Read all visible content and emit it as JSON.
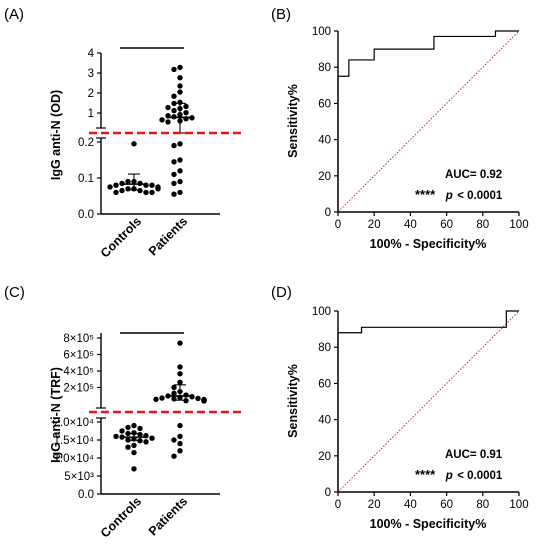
{
  "chart_data": [
    {
      "panel": "(A)",
      "type": "scatter",
      "ylabel": "IgG anti-N (OD)",
      "categories": [
        "Controls",
        "Patients"
      ],
      "y_axis_segments": [
        {
          "range": [
            0.0,
            0.2
          ],
          "ticks": [
            "0.0",
            "0.1",
            "0.2"
          ]
        },
        {
          "range": [
            0.5,
            4.0
          ],
          "ticks": [
            "1",
            "2",
            "3",
            "4"
          ]
        }
      ],
      "cutoff_line": true,
      "significance_bar": true,
      "summary": {
        "Controls": {
          "mean": 0.083,
          "err": [
            0.067,
            0.111
          ]
        },
        "Patients": {
          "mean": 0.87,
          "err": [
            0.22,
            1.55
          ]
        }
      },
      "series": [
        {
          "category": "Controls",
          "values": [
            0.195,
            0.09,
            0.09,
            0.085,
            0.085,
            0.08,
            0.08,
            0.08,
            0.075,
            0.075,
            0.07,
            0.07,
            0.07,
            0.065,
            0.065,
            0.06,
            0.06,
            0.06
          ]
        },
        {
          "category": "Patients",
          "values": [
            3.3,
            3.2,
            2.8,
            2.4,
            2.1,
            1.9,
            1.6,
            1.55,
            1.4,
            1.35,
            1.3,
            1.2,
            1.1,
            1.0,
            0.95,
            0.9,
            0.85,
            0.8,
            0.75,
            0.7,
            0.65,
            0.195,
            0.19,
            0.15,
            0.145,
            0.12,
            0.11,
            0.09,
            0.085,
            0.06,
            0.055
          ]
        }
      ]
    },
    {
      "panel": "(B)",
      "type": "line",
      "xlabel": "100% - Specificity%",
      "ylabel": "Sensitivity%",
      "xlim": [
        0,
        100
      ],
      "ylim": [
        0,
        100
      ],
      "xticks": [
        "0",
        "20",
        "40",
        "60",
        "80",
        "100"
      ],
      "yticks": [
        "0",
        "20",
        "40",
        "60",
        "80",
        "100"
      ],
      "annotation_auc": "AUC= 0.92",
      "annotation_stars": "****",
      "annotation_p_italic": "p",
      "annotation_p_rest": "< 0.0001",
      "roc": {
        "x": [
          0,
          0,
          6,
          6,
          13,
          13,
          20,
          20,
          53,
          53,
          80,
          80,
          87,
          87,
          100
        ],
        "y": [
          0,
          75,
          75,
          84,
          84,
          84,
          84,
          90,
          90,
          97,
          97,
          97,
          97,
          100,
          100
        ]
      },
      "reference": {
        "x": [
          0,
          100
        ],
        "y": [
          0,
          100
        ]
      }
    },
    {
      "panel": "(C)",
      "type": "scatter",
      "ylabel": "IgG anti-N (TRF)",
      "categories": [
        "Controls",
        "Patients"
      ],
      "y_axis_segments": [
        {
          "range": [
            0,
            20000
          ],
          "ticks": [
            "0.0",
            "5×10³",
            "1.0×10⁴",
            "1.5×10⁴",
            "2.0×10⁴"
          ]
        },
        {
          "range": [
            25000,
            800000
          ],
          "ticks": [
            "2×10⁵",
            "4×10⁵",
            "6×10⁵",
            "8×10⁵"
          ]
        }
      ],
      "cutoff_line": true,
      "significance_bar": true,
      "summary": {
        "Controls": {
          "mean": 15800,
          "err": [
            14900,
            16800
          ]
        },
        "Patients": {
          "mean": 120000,
          "err": [
            70000,
            250000
          ]
        }
      },
      "series": [
        {
          "category": "Controls",
          "values": [
            19000,
            18500,
            18200,
            17500,
            17000,
            16800,
            16500,
            16200,
            16000,
            15800,
            15500,
            15300,
            15000,
            14800,
            14500,
            13500,
            13000,
            11500,
            7000
          ]
        },
        {
          "category": "Patients",
          "values": [
            740000,
            460000,
            380000,
            280000,
            220000,
            170000,
            150000,
            130000,
            120000,
            110000,
            100000,
            95000,
            90000,
            85000,
            80000,
            78000,
            75000,
            72000,
            70000,
            68000,
            66000,
            64000,
            62000,
            60000,
            19000,
            16000,
            15000,
            14000,
            12000,
            10500
          ]
        }
      ]
    },
    {
      "panel": "(D)",
      "type": "line",
      "xlabel": "100% - Specificity%",
      "ylabel": "Sensitivity%",
      "xlim": [
        0,
        100
      ],
      "ylim": [
        0,
        100
      ],
      "xticks": [
        "0",
        "20",
        "40",
        "60",
        "80",
        "100"
      ],
      "yticks": [
        "0",
        "20",
        "40",
        "60",
        "80",
        "100"
      ],
      "annotation_auc": "AUC= 0.91",
      "annotation_stars": "****",
      "annotation_p_italic": "p",
      "annotation_p_rest": "< 0.0001",
      "roc": {
        "x": [
          0,
          0,
          13,
          13,
          93,
          93,
          100
        ],
        "y": [
          0,
          88,
          88,
          91,
          91,
          100,
          100
        ]
      },
      "reference": {
        "x": [
          0,
          100
        ],
        "y": [
          0,
          100
        ]
      }
    }
  ],
  "colors": {
    "axis": "#000000",
    "cutoff": "#e8141c",
    "reference": "#e8141c",
    "point": "#000000"
  }
}
